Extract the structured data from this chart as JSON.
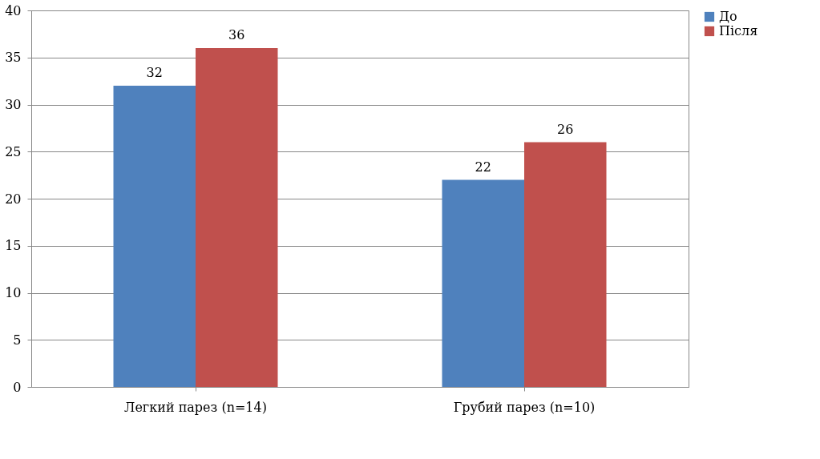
{
  "chart_data": {
    "type": "bar",
    "categories": [
      "Легкий парез (n=14)",
      "Грубий парез (n=10)"
    ],
    "series": [
      {
        "name": "До",
        "color": "#4f81bd",
        "values": [
          32,
          22
        ]
      },
      {
        "name": "Після",
        "color": "#c0504d",
        "values": [
          36,
          26
        ]
      }
    ],
    "ylim": [
      0,
      40
    ],
    "yticks": [
      0,
      5,
      10,
      15,
      20,
      25,
      30,
      35,
      40
    ],
    "grid": "y",
    "legend": "right",
    "data_labels": true
  }
}
